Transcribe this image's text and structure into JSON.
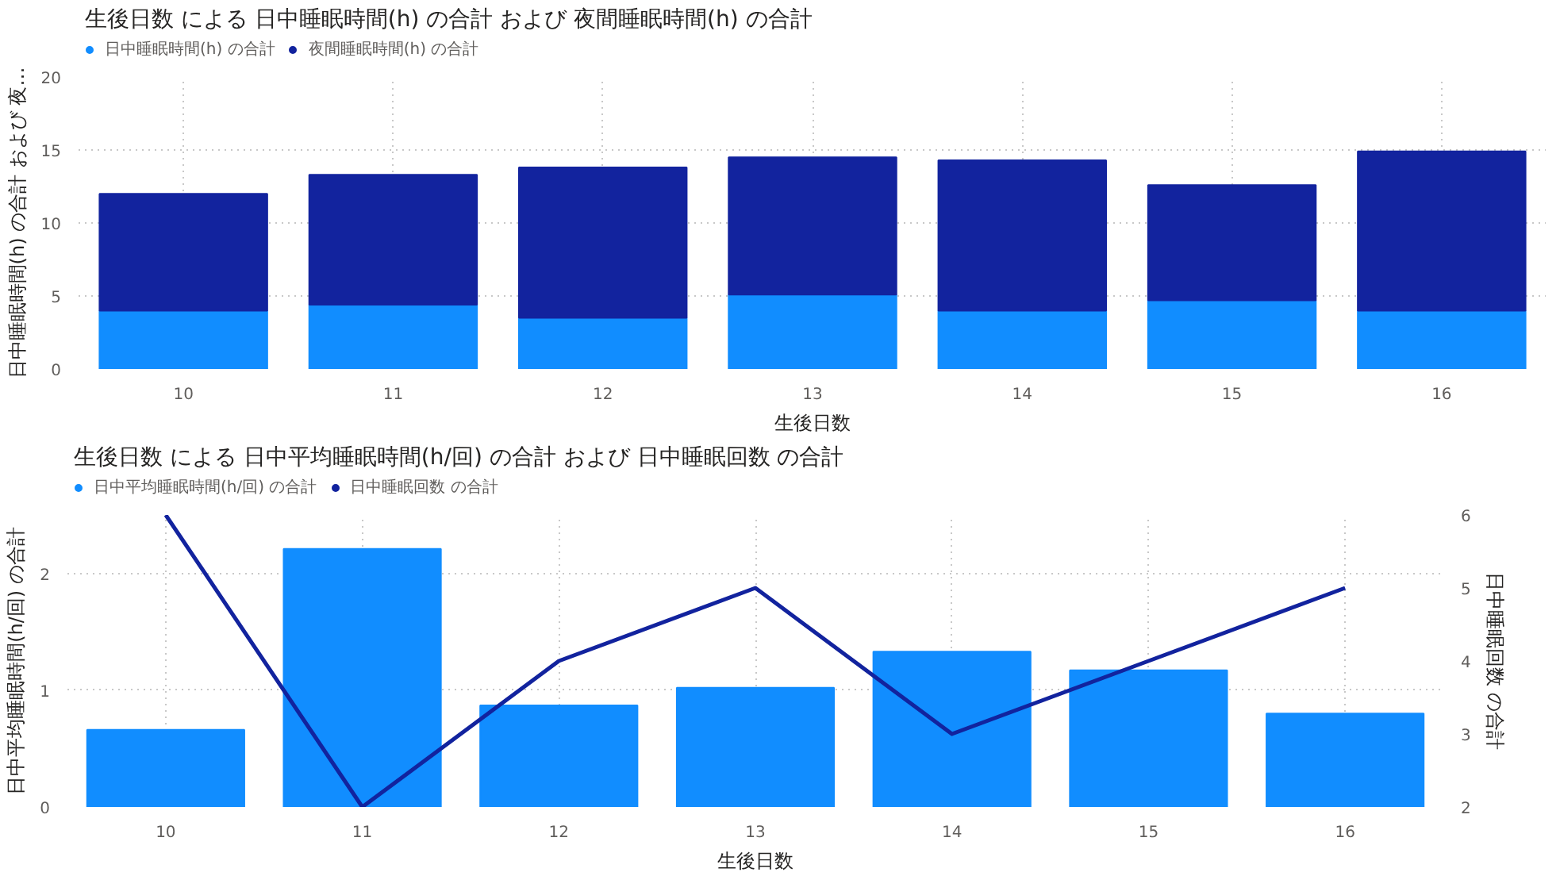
{
  "chart_data": [
    {
      "type": "bar",
      "title": "生後日数 による 日中睡眠時間(h) の合計 および 夜間睡眠時間(h) の合計",
      "xlabel": "生後日数",
      "ylabel": "日中睡眠時間(h) の合計 および 夜…",
      "categories": [
        "10",
        "11",
        "12",
        "13",
        "14",
        "15",
        "16"
      ],
      "stacked": true,
      "series": [
        {
          "name": "日中睡眠時間(h) の合計",
          "color": "#118dff",
          "values": [
            4.0,
            4.4,
            3.5,
            5.1,
            4.0,
            4.7,
            4.0
          ]
        },
        {
          "name": "夜間睡眠時間(h) の合計",
          "color": "#12239e",
          "values": [
            8.0,
            8.9,
            10.3,
            9.4,
            10.3,
            7.9,
            10.9
          ]
        }
      ],
      "ylim": [
        0,
        20
      ],
      "yticks": [
        0,
        5,
        10,
        15,
        20
      ],
      "grid": true,
      "legend": "top left"
    },
    {
      "type": "bar",
      "title": "生後日数 による 日中平均睡眠時間(h/回) の合計 および 日中睡眠回数 の合計",
      "xlabel": "生後日数",
      "ylabel": "日中平均睡眠時間(h/回) の合計",
      "y2label": "日中睡眠回数 の合計",
      "categories": [
        "10",
        "11",
        "12",
        "13",
        "14",
        "15",
        "16"
      ],
      "series": [
        {
          "name": "日中平均睡眠時間(h/回) の合計",
          "type": "bar",
          "color": "#118dff",
          "values": [
            0.66,
            2.21,
            0.87,
            1.02,
            1.33,
            1.17,
            0.8
          ]
        },
        {
          "name": "日中睡眠回数 の合計",
          "type": "line",
          "axis": "y2",
          "color": "#12239e",
          "values": [
            6,
            2,
            4,
            5,
            3,
            4,
            5
          ]
        }
      ],
      "ylim": [
        0,
        2.5
      ],
      "yticks": [
        0,
        1,
        2
      ],
      "y2lim": [
        2,
        6
      ],
      "y2ticks": [
        2,
        3,
        4,
        5,
        6
      ],
      "grid": true,
      "legend": "top left",
      "marker": "none",
      "line_style": "solid"
    }
  ]
}
